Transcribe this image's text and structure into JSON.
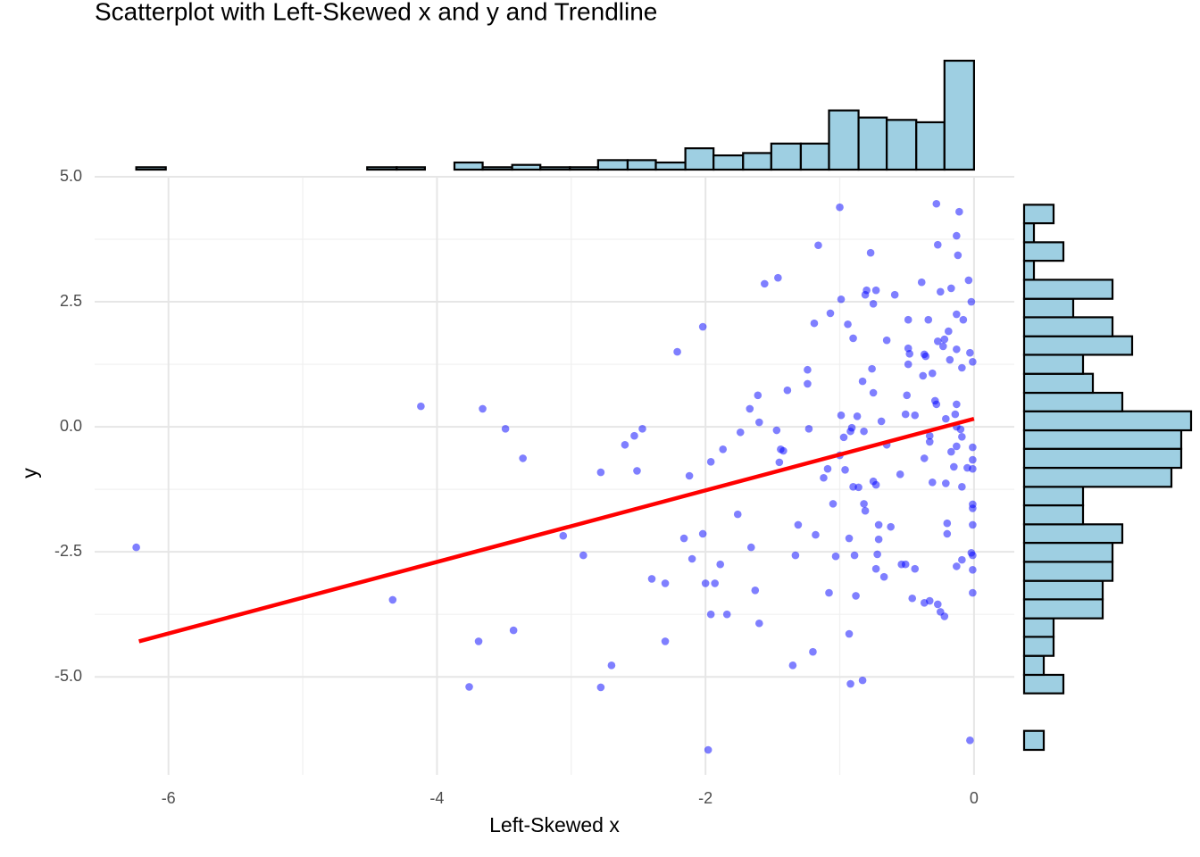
{
  "chart_data": {
    "type": "scatter",
    "title": "Scatterplot with Left-Skewed x and y and Trendline",
    "x_label": "Left-Skewed x",
    "y_label": "y",
    "color": "#0000ff",
    "xlim": [
      -6.55,
      0.3
    ],
    "ylim": [
      -6.96,
      5.0
    ],
    "xticks": [
      -6,
      -4,
      -2,
      0
    ],
    "yticks": [
      {
        "value": -5,
        "label": "-5.0"
      },
      -2.5,
      {
        "value": 0,
        "label": "0.0"
      },
      2.5,
      {
        "value": 5,
        "label": "5.0"
      }
    ],
    "grid": true,
    "x": [
      -6.24,
      -4.33,
      -4.12,
      -3.66,
      -3.49,
      -3.36,
      -3.69,
      -3.43,
      -3.76,
      -3.06,
      -2.91,
      -2.78,
      -2.78,
      -2.7,
      -2.6,
      -2.53,
      -2.47,
      -2.51,
      -2.4,
      -2.3,
      -2.3,
      -2.21,
      -2.16,
      -2.12,
      -2.1,
      -2.02,
      -2.02,
      -2.0,
      -1.96,
      -1.96,
      -1.93,
      -1.89,
      -1.87,
      -1.98,
      -1.84,
      -1.76,
      -1.74,
      -1.67,
      -1.66,
      -1.63,
      -1.61,
      -1.6,
      -1.6,
      -1.56,
      -1.46,
      -1.47,
      -1.44,
      -1.42,
      -1.45,
      -1.39,
      -1.35,
      -1.33,
      -1.31,
      -1.24,
      -1.24,
      -1.23,
      -1.2,
      -1.19,
      -1.18,
      -1.16,
      -1.12,
      -1.09,
      -1.08,
      -1.07,
      -1.05,
      -1.03,
      -1.0,
      -1.0,
      -0.99,
      -0.99,
      -0.97,
      -0.96,
      -0.94,
      -0.93,
      -0.93,
      -0.92,
      -0.92,
      -0.91,
      -0.9,
      -0.9,
      -0.89,
      -0.88,
      -0.87,
      -0.86,
      -0.83,
      -0.83,
      -0.82,
      -0.82,
      -0.81,
      -0.81,
      -0.8,
      -0.77,
      -0.76,
      -0.75,
      -0.75,
      -0.75,
      -0.73,
      -0.73,
      -0.73,
      -0.72,
      -0.71,
      -0.71,
      -0.69,
      -0.67,
      -0.65,
      -0.65,
      -0.62,
      -0.59,
      -0.55,
      -0.54,
      -0.51,
      -0.51,
      -0.5,
      -0.49,
      -0.49,
      -0.49,
      -0.48,
      -0.46,
      -0.44,
      -0.44,
      -0.39,
      -0.38,
      -0.37,
      -0.37,
      -0.37,
      -0.36,
      -0.34,
      -0.33,
      -0.33,
      -0.33,
      -0.31,
      -0.31,
      -0.29,
      -0.28,
      -0.28,
      -0.27,
      -0.27,
      -0.27,
      -0.25,
      -0.25,
      -0.23,
      -0.22,
      -0.22,
      -0.21,
      -0.21,
      -0.2,
      -0.2,
      -0.19,
      -0.18,
      -0.17,
      -0.17,
      -0.15,
      -0.14,
      -0.13,
      -0.13,
      -0.13,
      -0.13,
      -0.13,
      -0.13,
      -0.13,
      -0.12,
      -0.11,
      -0.1,
      -0.09,
      -0.09,
      -0.09,
      -0.09,
      -0.08,
      -0.05,
      -0.04,
      -0.03,
      -0.02,
      -0.01,
      -0.01,
      -0.01,
      -0.01,
      -0.01,
      -0.01,
      -0.02,
      -0.01,
      -0.01,
      -0.01,
      -0.03,
      -0.01
    ],
    "y": [
      -2.41,
      -3.46,
      0.41,
      0.36,
      -0.04,
      -0.63,
      -4.29,
      -4.07,
      -5.2,
      -2.18,
      -2.57,
      -0.91,
      -5.21,
      -4.77,
      -0.36,
      -0.18,
      -0.04,
      -0.88,
      -3.04,
      -3.13,
      -4.29,
      1.5,
      -2.23,
      -0.98,
      -2.64,
      2.0,
      -2.14,
      -3.13,
      -3.75,
      -0.7,
      -3.13,
      -2.75,
      -0.45,
      -6.46,
      -3.75,
      -1.75,
      -0.11,
      0.36,
      -2.41,
      -3.27,
      0.63,
      0.09,
      -3.93,
      2.86,
      2.98,
      -0.07,
      -0.45,
      -0.48,
      -0.71,
      0.73,
      -4.77,
      -2.57,
      -1.96,
      1.14,
      0.86,
      -0.04,
      -4.5,
      2.07,
      -2.16,
      3.63,
      -1.02,
      -0.84,
      -3.32,
      2.27,
      -1.54,
      -2.59,
      -0.57,
      4.39,
      2.55,
      0.23,
      -0.21,
      -0.86,
      2.05,
      -2.23,
      -4.14,
      -5.14,
      -0.09,
      -0.02,
      -1.2,
      1.77,
      -2.57,
      -3.38,
      0.21,
      -1.21,
      -5.07,
      0.91,
      -0.09,
      -1.54,
      2.64,
      -1.68,
      2.73,
      3.48,
      1.16,
      0.68,
      -1.09,
      2.46,
      -1.16,
      -2.84,
      2.73,
      -2.55,
      -1.96,
      -2.25,
      0.11,
      -3.0,
      1.73,
      -0.36,
      -2.0,
      2.64,
      -0.95,
      -2.75,
      0.25,
      -2.75,
      0.63,
      2.14,
      1.57,
      1.25,
      1.46,
      -3.43,
      0.23,
      -2.84,
      2.89,
      1.02,
      -3.52,
      -0.63,
      1.45,
      1.41,
      2.14,
      -3.48,
      -0.3,
      -0.18,
      -1.11,
      1.07,
      0.52,
      4.46,
      0.45,
      1.71,
      -3.55,
      3.64,
      -3.7,
      2.7,
      1.61,
      1.75,
      -3.79,
      -1.13,
      0.16,
      -1.93,
      -2.14,
      1.91,
      1.34,
      2.77,
      -0.5,
      -0.8,
      0.25,
      -2.79,
      2.25,
      1.55,
      0.45,
      0.0,
      -0.39,
      3.82,
      3.43,
      4.3,
      -0.05,
      1.18,
      -1.2,
      -0.2,
      -2.66,
      2.14,
      -0.82,
      2.93,
      1.48,
      2.5,
      -3.32,
      -1.63,
      -1.96,
      -2.57,
      1.3,
      -1.55,
      -2.52,
      -0.41,
      -0.66,
      -0.84,
      -6.27,
      -2.86
    ],
    "trendline": {
      "color": "#ff0000",
      "x": [
        -6.22,
        0.0
      ],
      "y": [
        -4.29,
        0.16
      ]
    },
    "x_histogram": {
      "color": "#9ecfe2",
      "bins": [
        -6.24,
        -6.02,
        -5.81,
        -5.59,
        -5.38,
        -5.16,
        -4.95,
        -4.73,
        -4.52,
        -4.3,
        -4.09,
        -3.87,
        -3.66,
        -3.44,
        -3.23,
        -3.01,
        -2.8,
        -2.58,
        -2.37,
        -2.15,
        -1.94,
        -1.72,
        -1.51,
        -1.29,
        -1.08,
        -0.86,
        -0.65,
        -0.43,
        -0.22,
        0.0
      ],
      "counts": [
        1,
        0,
        0,
        0,
        0,
        0,
        0,
        0,
        1,
        1,
        0,
        3,
        1,
        2,
        1,
        1,
        4,
        4,
        3,
        9,
        6,
        7,
        11,
        11,
        25,
        22,
        21,
        20,
        46
      ]
    },
    "y_histogram": {
      "color": "#9ecfe2",
      "bins": [
        -6.46,
        -6.08,
        -5.71,
        -5.33,
        -4.96,
        -4.58,
        -4.2,
        -3.83,
        -3.45,
        -3.08,
        -2.7,
        -2.32,
        -1.95,
        -1.57,
        -1.2,
        -0.82,
        -0.44,
        -0.07,
        0.31,
        0.68,
        1.06,
        1.44,
        1.81,
        2.19,
        2.56,
        2.94,
        3.32,
        3.69,
        4.07,
        4.44
      ],
      "counts": [
        2,
        0,
        0,
        4,
        2,
        3,
        3,
        8,
        8,
        9,
        9,
        10,
        6,
        6,
        15,
        16,
        16,
        17,
        10,
        7,
        6,
        11,
        9,
        5,
        9,
        1,
        4,
        1,
        3
      ]
    }
  }
}
